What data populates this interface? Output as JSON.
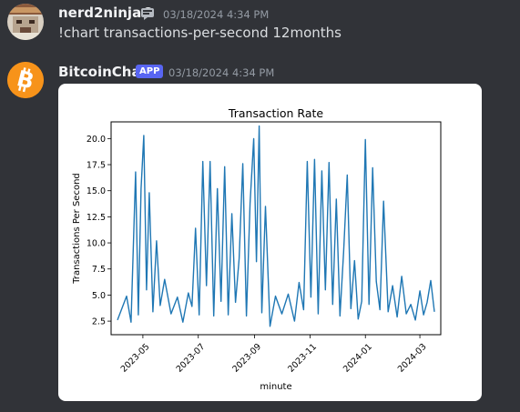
{
  "messages": [
    {
      "username": "nerd2ninja©",
      "timestamp": "03/18/2024 4:34 PM",
      "content": "!chart transactions-per-second 12months"
    },
    {
      "username": "BitcoinChat",
      "badge": "APP",
      "timestamp": "03/18/2024 4:34 PM"
    }
  ],
  "chart_data": {
    "type": "line",
    "title": "Transaction Rate",
    "xlabel": "minute",
    "ylabel": "Transactions Per Second",
    "ylim": [
      1.2,
      21.6
    ],
    "xlim": [
      "2023-03-27",
      "2024-03-24"
    ],
    "yticks": [
      "2.5",
      "5.0",
      "7.5",
      "10.0",
      "12.5",
      "15.0",
      "17.5",
      "20.0"
    ],
    "xticks": [
      "2023-05",
      "2023-07",
      "2023-09",
      "2023-11",
      "2024-01",
      "2024-03"
    ],
    "line_color": "#1f77b4",
    "grid": false,
    "series": [
      {
        "x": [
          "2023-04-03",
          "2023-04-13",
          "2023-04-18",
          "2023-04-23",
          "2023-04-26",
          "2023-04-29",
          "2023-05-02",
          "2023-05-05",
          "2023-05-08",
          "2023-05-12",
          "2023-05-16",
          "2023-05-20",
          "2023-05-25",
          "2023-06-01",
          "2023-06-08",
          "2023-06-14",
          "2023-06-20",
          "2023-06-24",
          "2023-06-28",
          "2023-07-02",
          "2023-07-06",
          "2023-07-10",
          "2023-07-14",
          "2023-07-18",
          "2023-07-22",
          "2023-07-26",
          "2023-07-30",
          "2023-08-03",
          "2023-08-07",
          "2023-08-11",
          "2023-08-15",
          "2023-08-19",
          "2023-08-23",
          "2023-08-27",
          "2023-08-31",
          "2023-09-03",
          "2023-09-06",
          "2023-09-09",
          "2023-09-13",
          "2023-09-18",
          "2023-09-24",
          "2023-10-01",
          "2023-10-08",
          "2023-10-15",
          "2023-10-20",
          "2023-10-25",
          "2023-10-29",
          "2023-11-02",
          "2023-11-06",
          "2023-11-10",
          "2023-11-14",
          "2023-11-18",
          "2023-11-22",
          "2023-11-26",
          "2023-11-30",
          "2023-12-04",
          "2023-12-08",
          "2023-12-12",
          "2023-12-16",
          "2023-12-20",
          "2023-12-24",
          "2023-12-28",
          "2024-01-01",
          "2024-01-05",
          "2024-01-09",
          "2024-01-13",
          "2024-01-17",
          "2024-01-21",
          "2024-01-26",
          "2024-01-31",
          "2024-02-05",
          "2024-02-10",
          "2024-02-15",
          "2024-02-20",
          "2024-02-25",
          "2024-03-01",
          "2024-03-05",
          "2024-03-09",
          "2024-03-13",
          "2024-03-17"
        ],
        "values": [
          2.6,
          4.9,
          2.4,
          16.8,
          3.1,
          15.2,
          20.3,
          5.5,
          14.8,
          3.4,
          10.2,
          4.0,
          6.5,
          3.2,
          4.8,
          2.4,
          5.2,
          3.9,
          11.4,
          3.1,
          17.8,
          5.9,
          17.8,
          3.0,
          15.2,
          4.4,
          17.3,
          3.1,
          12.8,
          4.3,
          8.5,
          17.6,
          3.0,
          13.8,
          20.0,
          8.2,
          21.2,
          3.3,
          13.5,
          2.0,
          4.9,
          3.2,
          5.1,
          2.5,
          6.2,
          3.6,
          17.8,
          4.8,
          18.0,
          3.2,
          16.9,
          5.5,
          17.7,
          4.1,
          14.2,
          3.0,
          9.1,
          16.5,
          3.7,
          8.3,
          2.7,
          4.4,
          19.9,
          4.1,
          17.2,
          6.3,
          3.6,
          14.0,
          3.4,
          5.9,
          2.9,
          6.8,
          3.2,
          4.1,
          2.6,
          5.4,
          3.1,
          4.3,
          6.4,
          3.4
        ]
      }
    ]
  }
}
